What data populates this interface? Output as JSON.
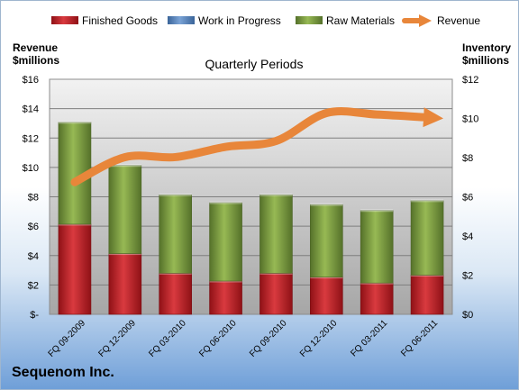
{
  "chart_data": {
    "type": "bar",
    "title": "Quarterly Periods",
    "left_axis_title": [
      "Revenue",
      "$millions"
    ],
    "right_axis_title": [
      "Inventory",
      "$millions"
    ],
    "categories": [
      "FQ 09-2009",
      "FQ 12-2009",
      "FQ 03-2010",
      "FQ 06-2010",
      "FQ 09-2010",
      "FQ 12-2010",
      "FQ 03-2011",
      "FQ 06-2011"
    ],
    "left_ticks": [
      "$-",
      "$2",
      "$4",
      "$6",
      "$8",
      "$10",
      "$12",
      "$14",
      "$16"
    ],
    "right_ticks": [
      "$0",
      "$2",
      "$4",
      "$6",
      "$8",
      "$10",
      "$12"
    ],
    "ylim_left": [
      0,
      16
    ],
    "ylim_right": [
      0,
      12
    ],
    "stacked": true,
    "grid": true,
    "legend_position": "top",
    "series": [
      {
        "name": "Finished Goods",
        "kind": "bar",
        "axis": "right",
        "color": "#c0272d",
        "values": [
          4.6,
          3.1,
          2.1,
          1.7,
          2.1,
          1.9,
          1.6,
          2.0
        ]
      },
      {
        "name": "Work in Progress",
        "kind": "bar",
        "axis": "right",
        "color": "#4f81bd",
        "values": [
          0,
          0,
          0,
          0,
          0,
          0,
          0,
          0
        ]
      },
      {
        "name": "Raw Materials",
        "kind": "bar",
        "axis": "right",
        "color": "#7a9b3c",
        "values": [
          5.2,
          4.5,
          4.0,
          4.0,
          4.0,
          3.7,
          3.7,
          3.8
        ]
      },
      {
        "name": "Revenue",
        "kind": "line",
        "axis": "left",
        "color": "#e8863a",
        "values": [
          9.0,
          10.7,
          10.7,
          11.4,
          11.8,
          13.7,
          13.6,
          13.4
        ]
      }
    ]
  },
  "company": "Sequenom Inc."
}
